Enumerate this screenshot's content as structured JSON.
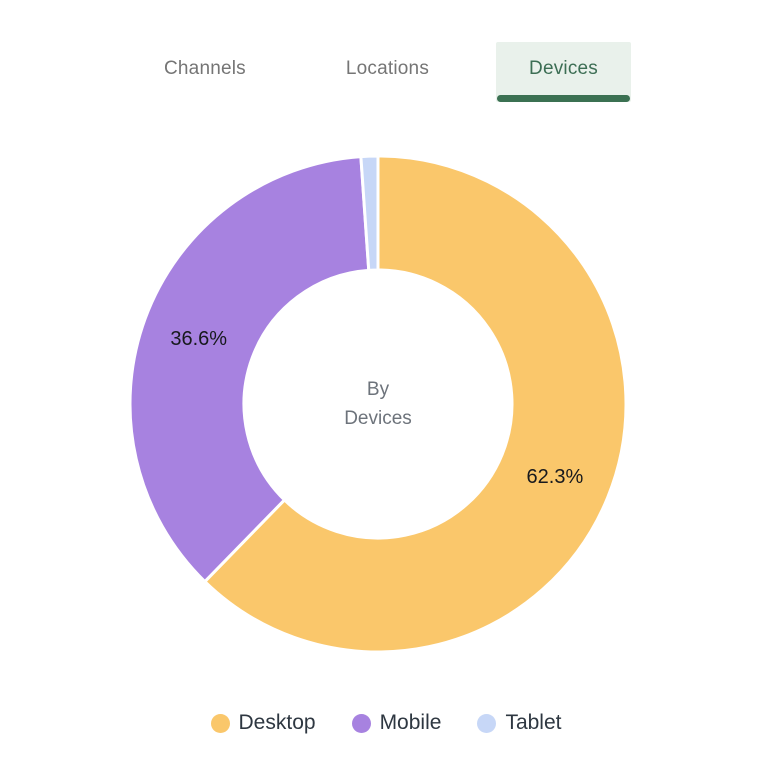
{
  "tabs": {
    "items": [
      {
        "label": "Channels",
        "active": false
      },
      {
        "label": "Locations",
        "active": false
      },
      {
        "label": "Devices",
        "active": true
      }
    ],
    "active_bg": "#E9F1EB",
    "active_text_color": "#3C6E54",
    "inactive_text_color": "#757575",
    "underline_color": "#3B7152"
  },
  "chart_data": {
    "type": "pie",
    "donut": true,
    "categories": [
      "Desktop",
      "Mobile",
      "Tablet"
    ],
    "values": [
      62.3,
      36.6,
      1.1
    ],
    "slice_labels": [
      "62.3%",
      "36.6%",
      ""
    ],
    "colors": [
      "#FAC76B",
      "#A782E0",
      "#C7D7F7"
    ],
    "center_label": {
      "line1": "By",
      "line2": "Devices"
    },
    "legend_position": "bottom",
    "start_angle_deg": 0,
    "direction": "clockwise",
    "inner_radius_ratio": 0.54,
    "slice_border_color": "#FFFFFF"
  }
}
